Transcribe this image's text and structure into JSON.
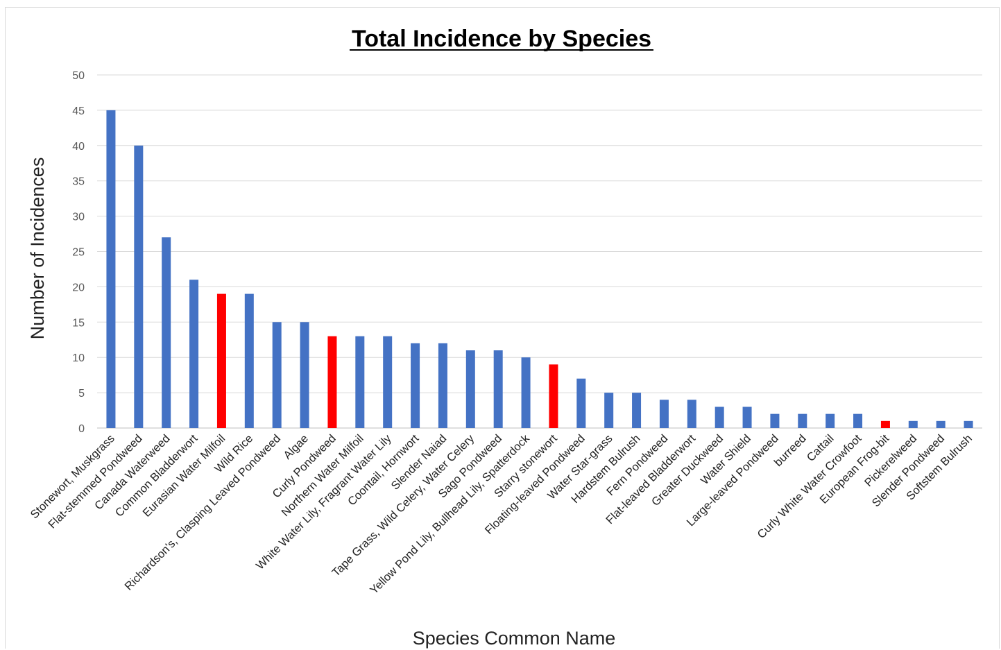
{
  "chart_data": {
    "type": "bar",
    "title": "Total Incidence by Species",
    "xlabel": "Species Common Name",
    "ylabel": "Number of Incidences",
    "ylim": [
      0,
      50
    ],
    "yticks": [
      0,
      5,
      10,
      15,
      20,
      25,
      30,
      35,
      40,
      45,
      50
    ],
    "grid": true,
    "legend": "none",
    "colors": {
      "default": "#4472c4",
      "highlight": "#ff0000",
      "grid": "#d9d9d9",
      "axis": "#bfbfbf"
    },
    "categories": [
      "Stonewort, Muskgrass",
      "Flat-stemmed Pondweed",
      "Canada Waterweed",
      "Common Bladderwort",
      "Eurasian Water Milfoil",
      "Wild Rice",
      "Richardson's, Clasping Leaved Pondweed",
      "Algae",
      "Curly Pondweed",
      "Northern Water Milfoil",
      "White Water Lily, Fragrant Water Lily",
      "Coontail, Hornwort",
      "Slender Naiad",
      "Tape Grass, Wild Celery, Water Celery",
      "Sago Pondweed",
      "Yellow Pond Lily, Bullhead Lily, Spatterdock",
      "Starry stonewort",
      "Floating-leaved Pondweed",
      "Water Star-grass",
      "Hardstem Bulrush",
      "Fern Pondweed",
      "Flat-leaved Bladderwort",
      "Greater Duckweed",
      "Water Shield",
      "Large-leaved Pondweed",
      "burreed",
      "Cattail",
      "Curly White Water Crowfoot",
      "European Frog-bit",
      "Pickerelweed",
      "Slender Pondweed",
      "Softstem Bulrush"
    ],
    "values": [
      45,
      40,
      27,
      21,
      19,
      19,
      15,
      15,
      13,
      13,
      13,
      12,
      12,
      11,
      11,
      10,
      9,
      7,
      5,
      5,
      4,
      4,
      3,
      3,
      2,
      2,
      2,
      2,
      1,
      1,
      1,
      1
    ],
    "highlighted": [
      "Eurasian Water Milfoil",
      "Curly Pondweed",
      "Starry stonewort",
      "European Frog-bit"
    ]
  }
}
